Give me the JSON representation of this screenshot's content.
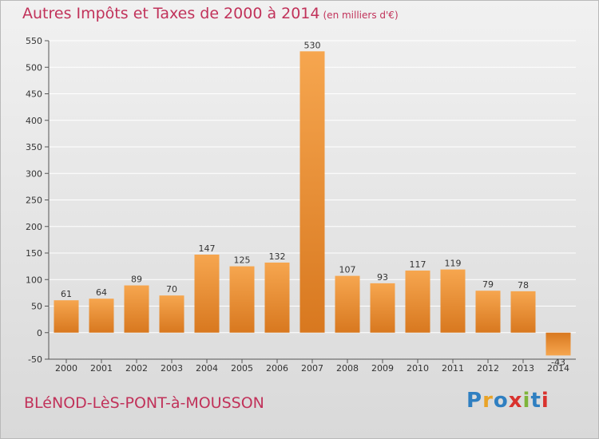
{
  "title": "Autres Impôts et Taxes de 2000 à 2014",
  "unit": "(en milliers d'€)",
  "commune": "BLéNOD-LèS-PONT-à-MOUSSON",
  "logo": {
    "letters": [
      "P",
      "r",
      "o",
      "x",
      "i",
      "t",
      "i"
    ],
    "colors": [
      "#2f7fc1",
      "#e9a327",
      "#2f7fc1",
      "#d9322e",
      "#7eb43a",
      "#2f7fc1",
      "#d9322e"
    ]
  },
  "chart_data": {
    "type": "bar",
    "categories": [
      "2000",
      "2001",
      "2002",
      "2003",
      "2004",
      "2005",
      "2006",
      "2007",
      "2008",
      "2009",
      "2010",
      "2011",
      "2012",
      "2013",
      "2014"
    ],
    "values": [
      61,
      64,
      89,
      70,
      147,
      125,
      132,
      530,
      107,
      93,
      117,
      119,
      79,
      78,
      -43
    ],
    "data_labels": [
      "61",
      "64",
      "89",
      "70",
      "147",
      "125",
      "132",
      "530",
      "107",
      "93",
      "117",
      "119",
      "79",
      "78",
      "-43"
    ],
    "ylim": [
      -50,
      550
    ],
    "yticks": [
      -50,
      0,
      50,
      100,
      150,
      200,
      250,
      300,
      350,
      400,
      450,
      500,
      550
    ],
    "grid": true,
    "bar_color_light": "#f6a64f",
    "bar_color_dark": "#d8781f"
  }
}
